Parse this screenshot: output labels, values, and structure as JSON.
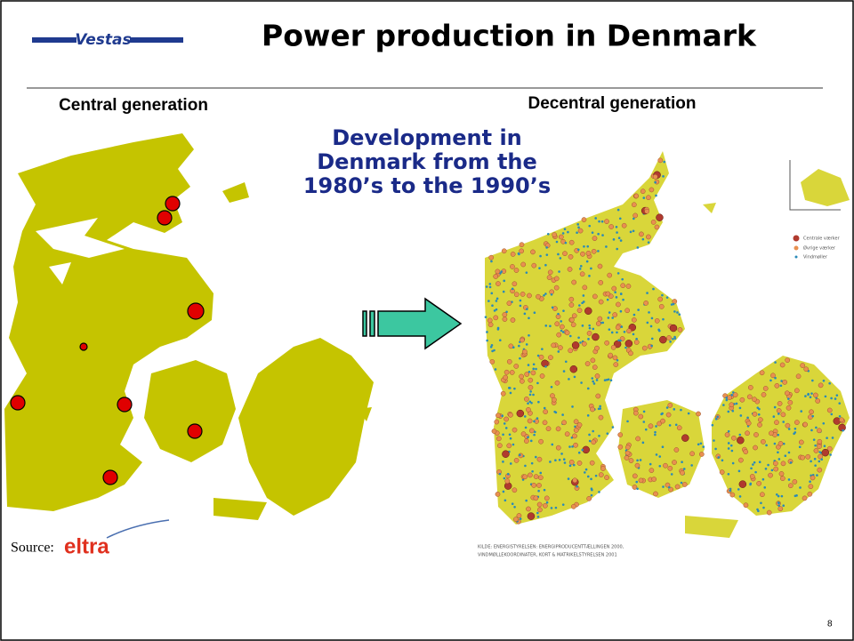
{
  "header": {
    "logo": "Vestas",
    "title": "Power production in Denmark"
  },
  "left": {
    "heading": "Central generation",
    "source_label": "Source:",
    "source_logo": "eltra"
  },
  "right": {
    "heading": "Decentral generation",
    "legend": [
      "Centrale værker",
      "Øvrige værker",
      "Vindmøller"
    ],
    "source_note": [
      "KILDE: ENERGISTYRELSEN: ENERGIPRODUCENTTÆLLINGEN 2000,",
      "VINDMØLLEKOORDINATER, KORT & MATRIKELSTYRELSEN 2001"
    ]
  },
  "center_text": [
    "Development in",
    "Denmark from the",
    "1980’s to the 1990’s"
  ],
  "page_number": "8"
}
